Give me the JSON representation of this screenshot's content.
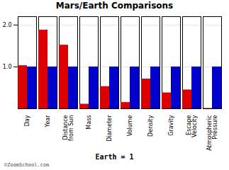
{
  "chart_data": {
    "type": "bar",
    "title": "Mars/Earth Comparisons",
    "xlabel": "Earth = 1",
    "annotations": [
      "©ZoomSchool.com"
    ],
    "categories": [
      "Day",
      "Year",
      "Distance\nfrom Sun",
      "Mass",
      "Diameter",
      "Volume",
      "Density",
      "Gravity",
      "Escape\nVelocity",
      "Atmospheric\nPressure"
    ],
    "series": [
      {
        "name": "Mars",
        "color": "#dd0000",
        "values": [
          1.03,
          1.88,
          1.52,
          0.11,
          0.53,
          0.15,
          0.71,
          0.38,
          0.45,
          0.01
        ]
      },
      {
        "name": "Earth",
        "color": "#0000cc",
        "values": [
          1.0,
          1.0,
          1.0,
          1.0,
          1.0,
          1.0,
          1.0,
          1.0,
          1.0,
          1.0
        ]
      }
    ],
    "ylim": [
      0,
      2.2
    ],
    "yticks": [
      1,
      2
    ],
    "grid": true
  }
}
